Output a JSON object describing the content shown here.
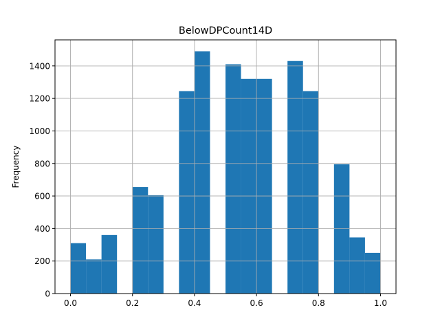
{
  "chart_data": {
    "type": "bar",
    "title": "BelowDPCount14D",
    "xlabel": "",
    "ylabel": "Frequency",
    "xlim": [
      -0.05,
      1.05
    ],
    "ylim": [
      0,
      1560
    ],
    "xticks": [
      0.0,
      0.2,
      0.4,
      0.6,
      0.8,
      1.0
    ],
    "xtick_labels": [
      "0.0",
      "0.2",
      "0.4",
      "0.6",
      "0.8",
      "1.0"
    ],
    "yticks": [
      0,
      200,
      400,
      600,
      800,
      1000,
      1200,
      1400
    ],
    "ytick_labels": [
      "0",
      "200",
      "400",
      "600",
      "800",
      "1000",
      "1200",
      "1400"
    ],
    "grid": true,
    "bar_color": "#1f77b4",
    "bins": [
      {
        "x0": 0.0,
        "x1": 0.05,
        "value": 310
      },
      {
        "x0": 0.05,
        "x1": 0.1,
        "value": 210
      },
      {
        "x0": 0.1,
        "x1": 0.15,
        "value": 360
      },
      {
        "x0": 0.15,
        "x1": 0.2,
        "value": 0
      },
      {
        "x0": 0.2,
        "x1": 0.25,
        "value": 655
      },
      {
        "x0": 0.25,
        "x1": 0.3,
        "value": 605
      },
      {
        "x0": 0.3,
        "x1": 0.35,
        "value": 0
      },
      {
        "x0": 0.35,
        "x1": 0.4,
        "value": 1245
      },
      {
        "x0": 0.4,
        "x1": 0.45,
        "value": 1490
      },
      {
        "x0": 0.45,
        "x1": 0.5,
        "value": 0
      },
      {
        "x0": 0.5,
        "x1": 0.55,
        "value": 1410
      },
      {
        "x0": 0.55,
        "x1": 0.6,
        "value": 1320
      },
      {
        "x0": 0.6,
        "x1": 0.65,
        "value": 1320
      },
      {
        "x0": 0.65,
        "x1": 0.7,
        "value": 0
      },
      {
        "x0": 0.7,
        "x1": 0.75,
        "value": 1430
      },
      {
        "x0": 0.75,
        "x1": 0.8,
        "value": 1245
      },
      {
        "x0": 0.8,
        "x1": 0.85,
        "value": 0
      },
      {
        "x0": 0.85,
        "x1": 0.9,
        "value": 795
      },
      {
        "x0": 0.9,
        "x1": 0.95,
        "value": 345
      },
      {
        "x0": 0.95,
        "x1": 1.0,
        "value": 250
      }
    ]
  }
}
